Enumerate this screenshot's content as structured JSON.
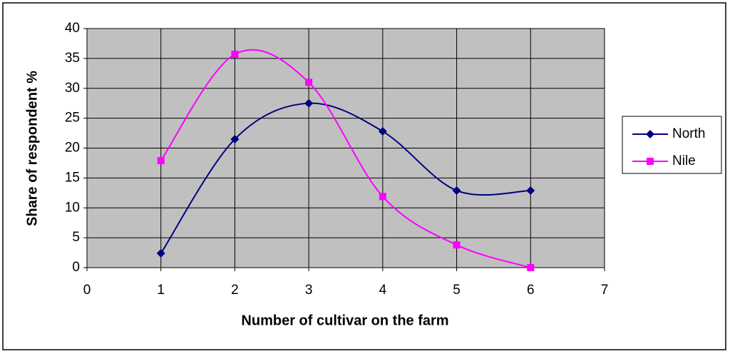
{
  "chart_data": {
    "type": "line",
    "x_label": "Number of cultivar on the farm",
    "y_label": "Share of respondent %",
    "x": [
      1,
      2,
      3,
      4,
      5,
      6
    ],
    "series": [
      {
        "name": "North",
        "color": "#000080",
        "marker": "diamond",
        "values": [
          2.4,
          21.5,
          27.5,
          22.8,
          12.9,
          12.9
        ]
      },
      {
        "name": "Nile",
        "color": "#ff00ff",
        "marker": "square",
        "values": [
          17.9,
          35.7,
          31.0,
          11.9,
          3.8,
          0
        ]
      }
    ],
    "xlim": [
      0,
      7
    ],
    "xticks": [
      0,
      1,
      2,
      3,
      4,
      5,
      6,
      7
    ],
    "ylim": [
      0,
      40
    ],
    "yticks": [
      0,
      5,
      10,
      15,
      20,
      25,
      30,
      35,
      40
    ],
    "grid": true,
    "smooth": true,
    "plot_background": "#c0c0c0",
    "legend": "right"
  }
}
